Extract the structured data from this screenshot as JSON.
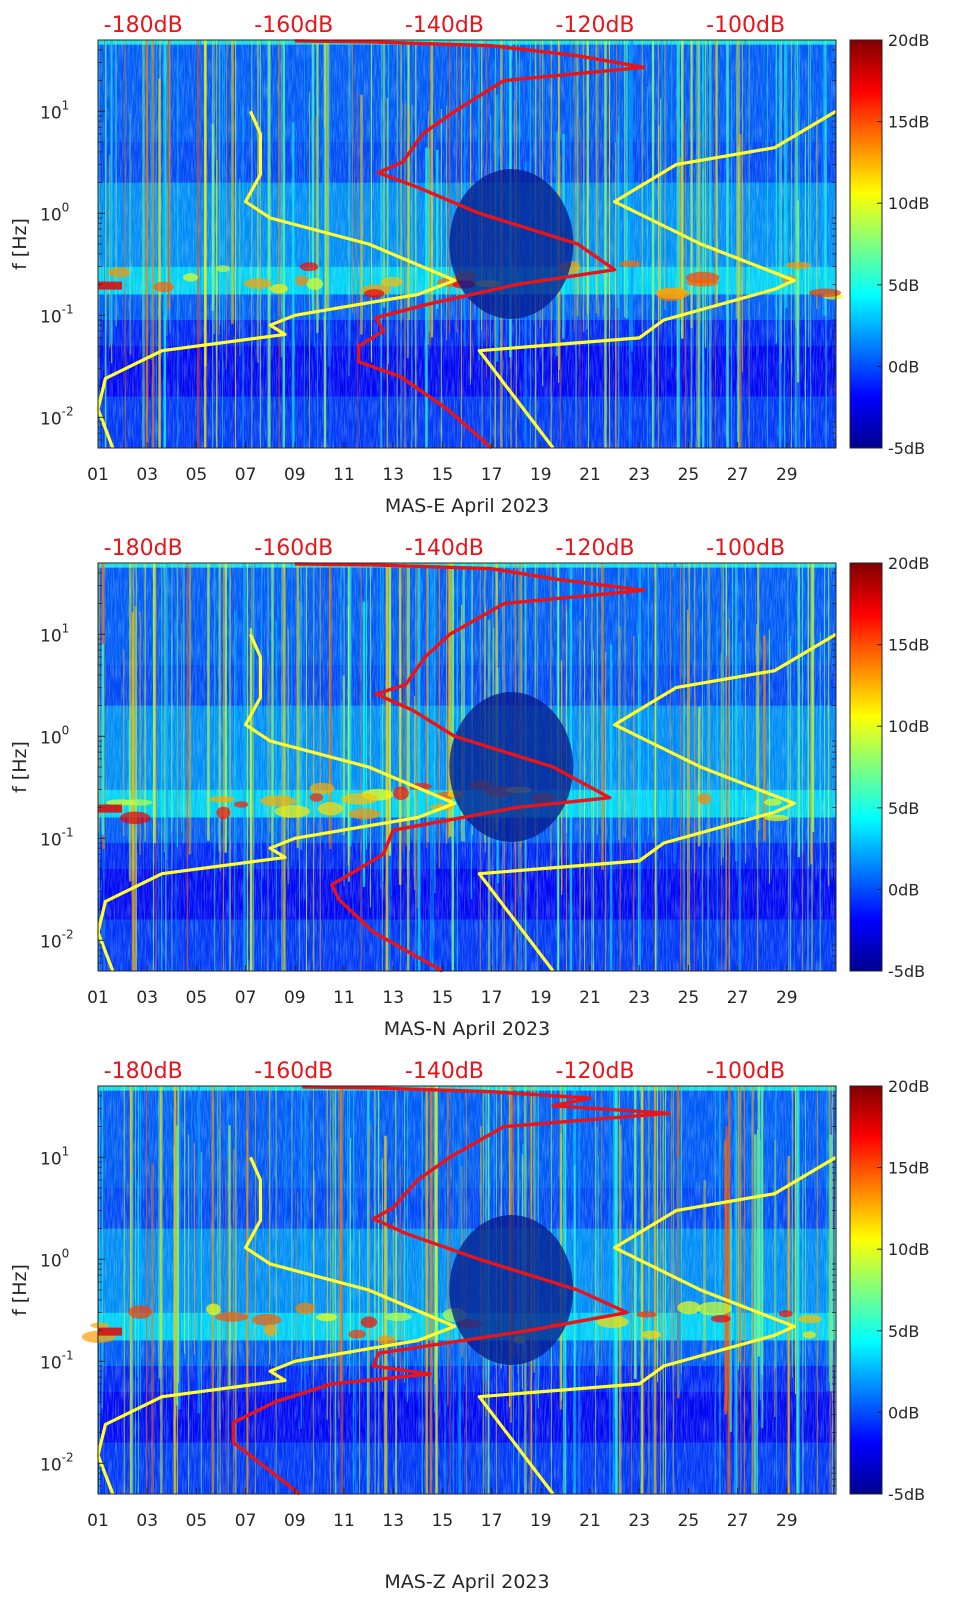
{
  "chart_data": [
    {
      "type": "heatmap",
      "title": "MAS-E April 2023",
      "xlabel": "MAS-E April 2023",
      "ylabel": "f [Hz]",
      "x_ticks": [
        "01",
        "03",
        "05",
        "07",
        "09",
        "11",
        "13",
        "15",
        "17",
        "19",
        "21",
        "23",
        "25",
        "27",
        "29"
      ],
      "x_range_days": [
        1,
        31
      ],
      "y_scale": "log",
      "y_range_hz": [
        0.005,
        50
      ],
      "y_ticks": [
        {
          "base": "10",
          "exp": "1"
        },
        {
          "base": "10",
          "exp": "0"
        },
        {
          "base": "10",
          "exp": "-1"
        },
        {
          "base": "10",
          "exp": "-2"
        }
      ],
      "top_axis_labels": [
        "-180dB",
        "-160dB",
        "-140dB",
        "-120dB",
        "-100dB"
      ],
      "top_axis_range_db": [
        -186,
        -88
      ],
      "colorbar": {
        "range_db": [
          -5,
          20
        ],
        "ticks": [
          "20dB",
          "15dB",
          "10dB",
          "5dB",
          "0dB",
          "-5dB"
        ],
        "colormap": "jet"
      },
      "noise_models": [
        {
          "name": "low-noise-model",
          "color": "#ffff33",
          "points_hz_day": [
            [
              0.005,
              1.6
            ],
            [
              0.012,
              1.0
            ],
            [
              0.024,
              1.3
            ],
            [
              0.045,
              3.6
            ],
            [
              0.065,
              8.6
            ],
            [
              0.08,
              8.0
            ],
            [
              0.1,
              9.0
            ],
            [
              0.16,
              14.0
            ],
            [
              0.22,
              15.5
            ],
            [
              0.5,
              12.0
            ],
            [
              0.9,
              8.0
            ],
            [
              1.3,
              7.0
            ],
            [
              2.4,
              7.6
            ],
            [
              6.0,
              7.6
            ],
            [
              10.0,
              7.2
            ]
          ]
        },
        {
          "name": "high-noise-model",
          "color": "#ffff33",
          "points_hz_day": [
            [
              0.005,
              19.5
            ],
            [
              0.045,
              16.5
            ],
            [
              0.06,
              23.0
            ],
            [
              0.09,
              24.0
            ],
            [
              0.18,
              28.5
            ],
            [
              0.22,
              29.3
            ],
            [
              0.5,
              25.5
            ],
            [
              1.3,
              22.0
            ],
            [
              3.0,
              24.5
            ],
            [
              4.4,
              28.5
            ],
            [
              10.0,
              31.0
            ]
          ]
        }
      ],
      "series": [
        {
          "name": "psd-curve",
          "color": "#e8141c",
          "points_hz_day": [
            [
              0.005,
              17.0
            ],
            [
              0.012,
              15.2
            ],
            [
              0.025,
              13.3
            ],
            [
              0.035,
              11.6
            ],
            [
              0.05,
              11.6
            ],
            [
              0.07,
              12.6
            ],
            [
              0.095,
              12.3
            ],
            [
              0.13,
              14.5
            ],
            [
              0.2,
              18.0
            ],
            [
              0.28,
              22.0
            ],
            [
              0.5,
              20.5
            ],
            [
              1.0,
              16.5
            ],
            [
              1.8,
              14.0
            ],
            [
              2.5,
              12.4
            ],
            [
              3.2,
              13.4
            ],
            [
              6.0,
              14.2
            ],
            [
              10.0,
              15.5
            ],
            [
              20.0,
              17.5
            ],
            [
              27.0,
              23.2
            ],
            [
              35.0,
              20.5
            ],
            [
              44.0,
              17.0
            ],
            [
              48.0,
              12.0
            ],
            [
              49.0,
              9.0
            ]
          ]
        }
      ]
    },
    {
      "type": "heatmap",
      "title": "MAS-N April 2023",
      "xlabel": "MAS-N April 2023",
      "ylabel": "f [Hz]",
      "x_ticks": [
        "01",
        "03",
        "05",
        "07",
        "09",
        "11",
        "13",
        "15",
        "17",
        "19",
        "21",
        "23",
        "25",
        "27",
        "29"
      ],
      "x_range_days": [
        1,
        31
      ],
      "y_scale": "log",
      "y_range_hz": [
        0.005,
        50
      ],
      "y_ticks": [
        {
          "base": "10",
          "exp": "1"
        },
        {
          "base": "10",
          "exp": "0"
        },
        {
          "base": "10",
          "exp": "-1"
        },
        {
          "base": "10",
          "exp": "-2"
        }
      ],
      "top_axis_labels": [
        "-180dB",
        "-160dB",
        "-140dB",
        "-120dB",
        "-100dB"
      ],
      "top_axis_range_db": [
        -186,
        -88
      ],
      "colorbar": {
        "range_db": [
          -5,
          20
        ],
        "ticks": [
          "20dB",
          "15dB",
          "10dB",
          "5dB",
          "0dB",
          "-5dB"
        ],
        "colormap": "jet"
      },
      "noise_models": [
        {
          "name": "low-noise-model",
          "color": "#ffff33",
          "points_hz_day": [
            [
              0.005,
              1.6
            ],
            [
              0.012,
              1.0
            ],
            [
              0.024,
              1.3
            ],
            [
              0.045,
              3.6
            ],
            [
              0.065,
              8.6
            ],
            [
              0.08,
              8.0
            ],
            [
              0.1,
              9.0
            ],
            [
              0.16,
              14.0
            ],
            [
              0.22,
              15.5
            ],
            [
              0.5,
              12.0
            ],
            [
              0.9,
              8.0
            ],
            [
              1.3,
              7.0
            ],
            [
              2.4,
              7.6
            ],
            [
              6.0,
              7.6
            ],
            [
              10.0,
              7.2
            ]
          ]
        },
        {
          "name": "high-noise-model",
          "color": "#ffff33",
          "points_hz_day": [
            [
              0.005,
              19.5
            ],
            [
              0.045,
              16.5
            ],
            [
              0.06,
              23.0
            ],
            [
              0.09,
              24.0
            ],
            [
              0.18,
              28.5
            ],
            [
              0.22,
              29.3
            ],
            [
              0.5,
              25.5
            ],
            [
              1.3,
              22.0
            ],
            [
              3.0,
              24.5
            ],
            [
              4.4,
              28.5
            ],
            [
              10.0,
              31.0
            ]
          ]
        }
      ],
      "series": [
        {
          "name": "psd-curve",
          "color": "#e8141c",
          "points_hz_day": [
            [
              0.005,
              15.0
            ],
            [
              0.012,
              12.2
            ],
            [
              0.025,
              10.8
            ],
            [
              0.035,
              10.5
            ],
            [
              0.05,
              11.6
            ],
            [
              0.07,
              12.6
            ],
            [
              0.12,
              13.0
            ],
            [
              0.2,
              18.0
            ],
            [
              0.25,
              21.8
            ],
            [
              0.5,
              19.5
            ],
            [
              1.0,
              15.5
            ],
            [
              1.8,
              13.8
            ],
            [
              2.6,
              12.3
            ],
            [
              3.2,
              13.5
            ],
            [
              6.0,
              14.3
            ],
            [
              10.0,
              15.3
            ],
            [
              20.0,
              17.5
            ],
            [
              27.0,
              23.2
            ],
            [
              35.0,
              19.5
            ],
            [
              44.0,
              17.0
            ],
            [
              48.0,
              12.0
            ],
            [
              49.0,
              9.0
            ]
          ]
        }
      ]
    },
    {
      "type": "heatmap",
      "title": "MAS-Z April 2023",
      "xlabel": "MAS-Z April 2023",
      "ylabel": "f [Hz]",
      "x_ticks": [
        "01",
        "03",
        "05",
        "07",
        "09",
        "11",
        "13",
        "15",
        "17",
        "19",
        "21",
        "23",
        "25",
        "27",
        "29"
      ],
      "x_range_days": [
        1,
        31
      ],
      "y_scale": "log",
      "y_range_hz": [
        0.005,
        50
      ],
      "y_ticks": [
        {
          "base": "10",
          "exp": "1"
        },
        {
          "base": "10",
          "exp": "0"
        },
        {
          "base": "10",
          "exp": "-1"
        },
        {
          "base": "10",
          "exp": "-2"
        }
      ],
      "top_axis_labels": [
        "-180dB",
        "-160dB",
        "-140dB",
        "-120dB",
        "-100dB"
      ],
      "top_axis_range_db": [
        -186,
        -88
      ],
      "colorbar": {
        "range_db": [
          -5,
          20
        ],
        "ticks": [
          "20dB",
          "15dB",
          "10dB",
          "5dB",
          "0dB",
          "-5dB"
        ],
        "colormap": "jet"
      },
      "noise_models": [
        {
          "name": "low-noise-model",
          "color": "#ffff33",
          "points_hz_day": [
            [
              0.005,
              1.6
            ],
            [
              0.012,
              1.0
            ],
            [
              0.024,
              1.3
            ],
            [
              0.045,
              3.6
            ],
            [
              0.065,
              8.6
            ],
            [
              0.08,
              8.0
            ],
            [
              0.1,
              9.0
            ],
            [
              0.16,
              14.0
            ],
            [
              0.22,
              15.5
            ],
            [
              0.5,
              12.0
            ],
            [
              0.9,
              8.0
            ],
            [
              1.3,
              7.0
            ],
            [
              2.4,
              7.6
            ],
            [
              6.0,
              7.6
            ],
            [
              10.0,
              7.2
            ]
          ]
        },
        {
          "name": "high-noise-model",
          "color": "#ffff33",
          "points_hz_day": [
            [
              0.005,
              19.5
            ],
            [
              0.045,
              16.5
            ],
            [
              0.06,
              23.0
            ],
            [
              0.09,
              24.0
            ],
            [
              0.18,
              28.5
            ],
            [
              0.22,
              29.3
            ],
            [
              0.5,
              25.5
            ],
            [
              1.3,
              22.0
            ],
            [
              3.0,
              24.5
            ],
            [
              4.4,
              28.5
            ],
            [
              10.0,
              31.0
            ]
          ]
        }
      ],
      "series": [
        {
          "name": "psd-curve",
          "color": "#e8141c",
          "points_hz_day": [
            [
              0.005,
              9.2
            ],
            [
              0.01,
              7.6
            ],
            [
              0.016,
              6.5
            ],
            [
              0.025,
              6.5
            ],
            [
              0.04,
              8.2
            ],
            [
              0.06,
              10.5
            ],
            [
              0.075,
              14.5
            ],
            [
              0.09,
              12.2
            ],
            [
              0.12,
              12.4
            ],
            [
              0.2,
              18.5
            ],
            [
              0.3,
              22.5
            ],
            [
              0.5,
              20.5
            ],
            [
              1.0,
              16.5
            ],
            [
              1.8,
              13.5
            ],
            [
              2.5,
              12.2
            ],
            [
              3.2,
              13.0
            ],
            [
              6.0,
              14.0
            ],
            [
              10.0,
              15.3
            ],
            [
              20.0,
              17.5
            ],
            [
              27.0,
              24.2
            ],
            [
              32.0,
              19.5
            ],
            [
              38.0,
              21.0
            ],
            [
              44.0,
              17.0
            ],
            [
              48.0,
              12.0
            ],
            [
              49.0,
              9.3
            ]
          ]
        }
      ]
    }
  ]
}
